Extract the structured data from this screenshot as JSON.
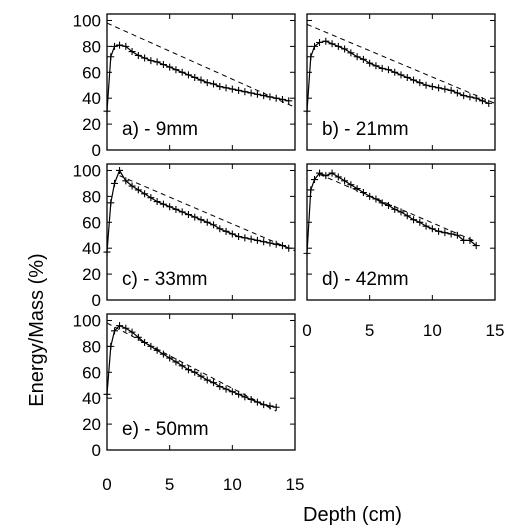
{
  "chart_data": {
    "type": "line",
    "ylabel": "Energy/Mass (%)",
    "xlabel": "Depth (cm)",
    "xlim": [
      0,
      15
    ],
    "ylim": [
      0,
      105
    ],
    "x_ticks": [
      0,
      5,
      10,
      15
    ],
    "y_ticks": [
      0,
      20,
      40,
      60,
      80,
      100
    ],
    "grid": false,
    "panels": [
      {
        "label": "a) - 9mm",
        "reference_line": {
          "x": [
            0,
            15
          ],
          "y": [
            98,
            33
          ]
        },
        "measured": {
          "x": [
            0,
            0.3,
            0.6,
            1,
            1.5,
            2,
            2.5,
            3,
            3.5,
            4,
            4.5,
            5,
            5.5,
            6,
            6.5,
            7,
            7.5,
            8,
            8.5,
            9,
            9.5,
            10,
            10.5,
            11,
            11.5,
            12,
            12.5,
            13,
            13.5,
            14,
            14.5
          ],
          "y": [
            30,
            72,
            80,
            81,
            80,
            76,
            73,
            71,
            69,
            68,
            66,
            64,
            62,
            60,
            58,
            56,
            54,
            52,
            51,
            49,
            48,
            47,
            46,
            45,
            44,
            43,
            42,
            41,
            40,
            39,
            38
          ]
        }
      },
      {
        "label": "b) - 21mm",
        "reference_line": {
          "x": [
            0,
            15
          ],
          "y": [
            97,
            36
          ]
        },
        "measured": {
          "x": [
            0,
            0.3,
            0.6,
            1,
            1.5,
            2,
            2.5,
            3,
            3.5,
            4,
            4.5,
            5,
            5.5,
            6,
            6.5,
            7,
            7.5,
            8,
            8.5,
            9,
            9.5,
            10,
            10.5,
            11,
            11.5,
            12,
            12.5,
            13,
            13.5,
            14,
            14.5
          ],
          "y": [
            30,
            72,
            80,
            83,
            84,
            82,
            80,
            78,
            75,
            72,
            70,
            67,
            65,
            63,
            62,
            60,
            58,
            56,
            54,
            52,
            50,
            49,
            48,
            47,
            46,
            44,
            42,
            41,
            40,
            38,
            36
          ]
        }
      },
      {
        "label": "c) - 33mm",
        "reference_line": {
          "x": [
            1,
            15
          ],
          "y": [
            96,
            38
          ]
        },
        "measured": {
          "x": [
            0,
            0.3,
            0.6,
            1,
            1.5,
            2,
            2.5,
            3,
            3.5,
            4,
            4.5,
            5,
            5.5,
            6,
            6.5,
            7,
            7.5,
            8,
            8.5,
            9,
            9.5,
            10,
            10.5,
            11,
            11.5,
            12,
            12.5,
            13,
            13.5,
            14,
            14.5
          ],
          "y": [
            37,
            75,
            90,
            100,
            92,
            88,
            85,
            82,
            79,
            76,
            74,
            72,
            70,
            68,
            66,
            64,
            62,
            60,
            58,
            55,
            53,
            51,
            49,
            48,
            47,
            46,
            45,
            44,
            43,
            42,
            40
          ]
        }
      },
      {
        "label": "d) - 42mm",
        "reference_line": {
          "x": [
            1,
            13.5
          ],
          "y": [
            97,
            45
          ]
        },
        "measured": {
          "x": [
            0,
            0.3,
            0.6,
            1,
            1.5,
            2,
            2.5,
            3,
            3.5,
            4,
            4.5,
            5,
            5.5,
            6,
            6.5,
            7,
            7.5,
            8,
            8.5,
            9,
            9.5,
            10,
            10.5,
            11,
            11.5,
            12,
            12.5,
            13,
            13.5
          ],
          "y": [
            36,
            85,
            93,
            98,
            96,
            98,
            95,
            92,
            89,
            86,
            83,
            80,
            78,
            75,
            73,
            70,
            68,
            65,
            62,
            60,
            57,
            55,
            53,
            52,
            51,
            50,
            46,
            46,
            42
          ]
        }
      },
      {
        "label": "e) - 50mm",
        "reference_line": {
          "x": [
            0,
            13.5
          ],
          "y": [
            98,
            30
          ]
        },
        "measured": {
          "x": [
            0,
            0.3,
            0.6,
            1,
            1.5,
            2,
            2.5,
            3,
            3.5,
            4,
            4.5,
            5,
            5.5,
            6,
            6.5,
            7,
            7.5,
            8,
            8.5,
            9,
            9.5,
            10,
            10.5,
            11,
            11.5,
            12,
            12.5,
            13,
            13.5
          ],
          "y": [
            43,
            80,
            92,
            96,
            94,
            91,
            87,
            83,
            80,
            77,
            74,
            71,
            68,
            65,
            62,
            60,
            57,
            54,
            52,
            49,
            47,
            45,
            43,
            41,
            39,
            37,
            35,
            34,
            33
          ]
        }
      }
    ]
  }
}
